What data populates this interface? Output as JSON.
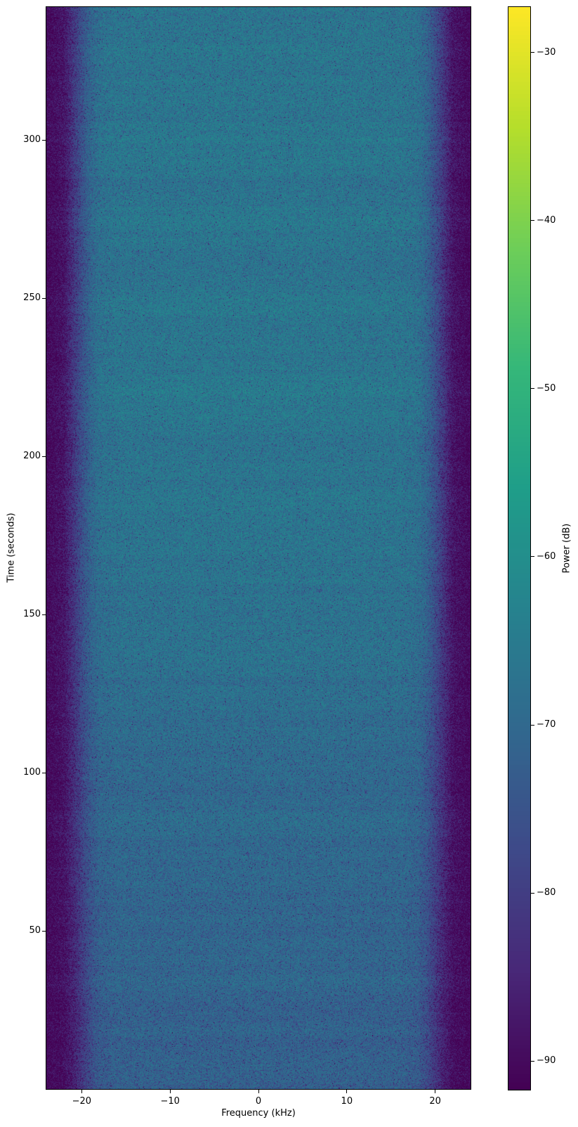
{
  "figure": {
    "background": "#ffffff"
  },
  "chart_data": {
    "type": "heatmap",
    "subtype": "spectrogram-waterfall",
    "title": "",
    "xlabel": "Frequency (kHz)",
    "ylabel": "Time (seconds)",
    "colorbar_label": "Power (dB)",
    "xlim": [
      -24,
      24
    ],
    "ylim": [
      0,
      342
    ],
    "clim": [
      -91.7,
      -27.3
    ],
    "grid_lines": false,
    "legend": "none",
    "xticks": [
      {
        "value": -20,
        "label": "−20"
      },
      {
        "value": -10,
        "label": "−10"
      },
      {
        "value": 0,
        "label": "0"
      },
      {
        "value": 10,
        "label": "10"
      },
      {
        "value": 20,
        "label": "20"
      }
    ],
    "yticks": [
      {
        "value": 50,
        "label": "50"
      },
      {
        "value": 100,
        "label": "100"
      },
      {
        "value": 150,
        "label": "150"
      },
      {
        "value": 200,
        "label": "200"
      },
      {
        "value": 250,
        "label": "250"
      },
      {
        "value": 300,
        "label": "300"
      }
    ],
    "colorbar_ticks": [
      {
        "value": -30,
        "label": "−30"
      },
      {
        "value": -40,
        "label": "−40"
      },
      {
        "value": -50,
        "label": "−50"
      },
      {
        "value": -60,
        "label": "−60"
      },
      {
        "value": -70,
        "label": "−70"
      },
      {
        "value": -80,
        "label": "−80"
      },
      {
        "value": -90,
        "label": "−90"
      }
    ],
    "colormap": {
      "name": "viridis",
      "stops": [
        "#440154",
        "#482878",
        "#3e4a89",
        "#31688e",
        "#26828e",
        "#1f9e89",
        "#35b779",
        "#6ece58",
        "#b5de2b",
        "#fde725"
      ]
    },
    "grid": {
      "freqs_khz": [
        -24,
        -22,
        -21,
        -20,
        -19,
        -18,
        -16,
        -8,
        0,
        8,
        16,
        18,
        19,
        20,
        21,
        22,
        24
      ],
      "times_s": [
        0,
        40,
        80,
        110,
        140,
        170,
        200,
        230,
        270,
        310,
        343
      ],
      "power_db": [
        [
          -91.0,
          -89.5,
          -86.0,
          -81.2,
          -76.2,
          -73.0,
          -71.5,
          -71.2,
          -71.2,
          -71.2,
          -71.5,
          -73.0,
          -76.2,
          -81.2,
          -86.0,
          -89.5,
          -91.0
        ],
        [
          -91.0,
          -89.2,
          -85.5,
          -80.5,
          -75.5,
          -72.3,
          -70.9,
          -70.6,
          -70.6,
          -70.6,
          -70.9,
          -72.3,
          -75.5,
          -80.5,
          -85.5,
          -89.2,
          -91.0
        ],
        [
          -91.0,
          -88.8,
          -84.0,
          -78.6,
          -74.0,
          -71.0,
          -69.9,
          -69.6,
          -69.6,
          -69.6,
          -69.9,
          -71.0,
          -74.0,
          -78.6,
          -84.0,
          -88.8,
          -91.0
        ],
        [
          -91.0,
          -88.5,
          -83.0,
          -77.3,
          -72.6,
          -69.9,
          -68.9,
          -68.6,
          -68.6,
          -68.6,
          -68.9,
          -69.9,
          -72.6,
          -77.3,
          -83.0,
          -88.5,
          -91.0
        ],
        [
          -91.0,
          -88.2,
          -82.2,
          -76.2,
          -71.2,
          -68.6,
          -67.6,
          -67.3,
          -67.3,
          -67.3,
          -67.6,
          -68.6,
          -71.2,
          -76.2,
          -82.2,
          -88.2,
          -91.0
        ],
        [
          -91.0,
          -88.0,
          -81.7,
          -75.6,
          -70.5,
          -67.8,
          -66.8,
          -66.5,
          -66.5,
          -66.5,
          -66.8,
          -67.8,
          -70.5,
          -75.6,
          -81.7,
          -88.0,
          -91.0
        ],
        [
          -91.0,
          -88.0,
          -81.5,
          -75.4,
          -70.1,
          -67.4,
          -66.4,
          -66.1,
          -66.1,
          -66.1,
          -66.4,
          -67.4,
          -70.1,
          -75.4,
          -81.5,
          -88.0,
          -91.0
        ],
        [
          -91.0,
          -88.0,
          -81.4,
          -75.2,
          -69.8,
          -67.0,
          -66.0,
          -65.7,
          -65.7,
          -65.7,
          -66.0,
          -67.0,
          -69.8,
          -75.2,
          -81.4,
          -88.0,
          -91.0
        ],
        [
          -91.0,
          -88.0,
          -81.5,
          -75.3,
          -70.0,
          -67.3,
          -66.3,
          -66.0,
          -66.0,
          -66.0,
          -66.3,
          -67.3,
          -70.0,
          -75.3,
          -81.5,
          -88.0,
          -91.0
        ],
        [
          -91.0,
          -88.0,
          -81.6,
          -75.5,
          -70.3,
          -67.6,
          -66.7,
          -66.4,
          -66.4,
          -66.4,
          -66.7,
          -67.6,
          -70.3,
          -75.5,
          -81.6,
          -88.0,
          -91.0
        ],
        [
          -91.0,
          -88.0,
          -81.5,
          -75.3,
          -70.0,
          -67.3,
          -66.3,
          -66.0,
          -66.0,
          -66.0,
          -66.3,
          -67.3,
          -70.0,
          -75.3,
          -81.5,
          -88.0,
          -91.0
        ]
      ]
    },
    "noise": {
      "model": "exponential_speckle",
      "speckle_scale": 0.8,
      "speckle_offset_db": 1.8,
      "row_band_sigma_db": 0.5,
      "seed": 1337
    }
  }
}
